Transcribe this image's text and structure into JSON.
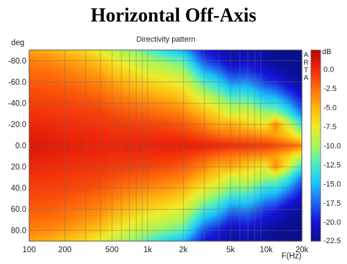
{
  "chart_data": {
    "type": "heatmap",
    "title": "Horizontal Off-Axis",
    "subtitle": "Directivity pattern",
    "xlabel": "F(Hz)",
    "ylabel": "deg",
    "x_scale": "log",
    "xlim": [
      100,
      20000
    ],
    "ylim": [
      -90,
      90
    ],
    "x_ticks": [
      100,
      200,
      500,
      1000,
      2000,
      5000,
      10000,
      20000
    ],
    "x_tick_labels": [
      "100",
      "200",
      "500",
      "1k",
      "2k",
      "5k",
      "10k",
      "20k"
    ],
    "y_ticks": [
      -80,
      -60,
      -40,
      -20,
      0,
      20,
      40,
      60,
      80
    ],
    "y_tick_labels": [
      "-80.0",
      "-60.0",
      "-40.0",
      "-20.0",
      "0.0",
      "20.0",
      "40.0",
      "60.0",
      "80.0"
    ],
    "watermark": "ARTA",
    "colorbar": {
      "unit": "dB",
      "range": [
        -22.5,
        2.5
      ],
      "ticks": [
        0,
        -2.5,
        -5,
        -7.5,
        -10,
        -12.5,
        -15,
        -17.5,
        -20,
        -22.5
      ],
      "tick_labels": [
        "0.0",
        "-2.5",
        "-5.0",
        "-7.5",
        "-10.0",
        "-12.5",
        "-15.0",
        "-17.5",
        "-20.0",
        "-22.5"
      ],
      "colors": [
        "#0a0f8c",
        "#1414d7",
        "#1e64f0",
        "#19c3fa",
        "#4bebc8",
        "#aaf55a",
        "#f0eb28",
        "#ffb40f",
        "#ff6e0a",
        "#f0280a",
        "#b40505"
      ]
    },
    "frequencies_hz": [
      100,
      150,
      200,
      300,
      400,
      500,
      700,
      1000,
      1500,
      2000,
      3000,
      4000,
      5000,
      7000,
      10000,
      12000,
      15000,
      20000
    ],
    "angles_deg": [
      -90,
      -80,
      -70,
      -60,
      -50,
      -40,
      -30,
      -20,
      -10,
      0,
      10,
      20,
      30,
      40,
      50,
      60,
      70,
      80,
      90
    ],
    "values_db": [
      [
        -4.4,
        -5.0,
        -5.6,
        -6.8,
        -8.0,
        -9.2,
        -10.4,
        -12.1,
        -14.4,
        -15.5,
        -20.0,
        -21.0,
        -22.0,
        -21.5,
        -22.0,
        -22.5,
        -22.5,
        -22.5
      ],
      [
        -3.2,
        -3.6,
        -4.1,
        -5.0,
        -5.9,
        -7.2,
        -8.5,
        -9.9,
        -11.1,
        -12.2,
        -18.3,
        -19.8,
        -21.0,
        -20.5,
        -21.7,
        -22.3,
        -22.5,
        -22.5
      ],
      [
        -2.4,
        -2.6,
        -3.0,
        -3.8,
        -4.5,
        -5.7,
        -6.9,
        -8.2,
        -9.1,
        -10.0,
        -15.4,
        -17.1,
        -19.2,
        -18.9,
        -20.4,
        -21.1,
        -22.0,
        -22.5
      ],
      [
        -1.8,
        -2.0,
        -2.3,
        -2.9,
        -3.4,
        -4.3,
        -5.4,
        -6.4,
        -7.3,
        -8.2,
        -12.5,
        -14.2,
        -16.6,
        -16.4,
        -18.8,
        -19.4,
        -21.0,
        -22.1
      ],
      [
        -1.2,
        -1.4,
        -1.6,
        -2.1,
        -2.5,
        -3.2,
        -4.1,
        -4.8,
        -5.6,
        -6.5,
        -9.9,
        -11.7,
        -13.7,
        -13.7,
        -16.0,
        -16.6,
        -18.6,
        -20.9
      ],
      [
        -0.8,
        -0.9,
        -1.0,
        -1.3,
        -1.6,
        -2.2,
        -2.8,
        -3.4,
        -4.0,
        -4.8,
        -7.5,
        -9.0,
        -10.8,
        -11.0,
        -13.5,
        -13.6,
        -15.7,
        -19.2
      ],
      [
        -0.4,
        -0.5,
        -0.6,
        -0.8,
        -0.9,
        -1.3,
        -1.7,
        -2.1,
        -2.6,
        -3.2,
        -5.2,
        -6.8,
        -8.5,
        -8.3,
        -10.1,
        -10.3,
        -12.5,
        -16.8
      ],
      [
        0.2,
        0.0,
        -0.2,
        -0.3,
        -0.4,
        -0.6,
        -0.8,
        -1.0,
        -1.3,
        -1.8,
        -3.3,
        -4.9,
        -4.5,
        -6.3,
        -7.5,
        -3.3,
        -8.0,
        -13.3
      ],
      [
        0.6,
        0.4,
        0.2,
        0.1,
        0.0,
        -0.2,
        -0.2,
        -0.3,
        -0.4,
        -0.6,
        -1.5,
        -2.5,
        -2.9,
        -3.3,
        -3.9,
        -4.4,
        -6.0,
        -9.2
      ],
      [
        1.0,
        0.8,
        0.6,
        0.4,
        0.3,
        0.2,
        0.3,
        0.4,
        0.5,
        0.6,
        0.4,
        0.2,
        0.0,
        -0.3,
        -0.6,
        -1.0,
        -1.7,
        -2.9
      ],
      [
        0.6,
        0.4,
        0.2,
        0.1,
        0.0,
        -0.2,
        -0.2,
        -0.3,
        -0.4,
        -0.6,
        -1.5,
        -2.5,
        -2.9,
        -3.3,
        -3.9,
        -4.4,
        -6.0,
        -9.2
      ],
      [
        0.2,
        0.0,
        -0.2,
        -0.3,
        -0.4,
        -0.6,
        -0.8,
        -1.0,
        -1.3,
        -1.8,
        -3.3,
        -4.9,
        -4.5,
        -6.3,
        -7.5,
        -3.3,
        -8.0,
        -13.3
      ],
      [
        -0.4,
        -0.5,
        -0.6,
        -0.8,
        -0.9,
        -1.3,
        -1.7,
        -2.1,
        -2.6,
        -3.2,
        -5.2,
        -6.8,
        -8.5,
        -8.3,
        -10.1,
        -10.3,
        -12.5,
        -16.8
      ],
      [
        -0.8,
        -0.9,
        -1.0,
        -1.3,
        -1.6,
        -2.2,
        -2.8,
        -3.4,
        -4.0,
        -4.8,
        -7.5,
        -9.0,
        -10.8,
        -11.0,
        -13.5,
        -13.6,
        -15.7,
        -19.2
      ],
      [
        -1.2,
        -1.4,
        -1.6,
        -2.1,
        -2.5,
        -3.2,
        -4.1,
        -4.8,
        -5.6,
        -6.5,
        -9.9,
        -11.7,
        -13.7,
        -13.7,
        -16.0,
        -16.6,
        -18.6,
        -20.9
      ],
      [
        -1.8,
        -2.0,
        -2.3,
        -2.9,
        -3.4,
        -4.3,
        -5.4,
        -6.4,
        -7.3,
        -8.2,
        -12.5,
        -14.2,
        -16.6,
        -16.4,
        -18.8,
        -19.4,
        -21.0,
        -22.1
      ],
      [
        -2.4,
        -2.6,
        -3.0,
        -3.8,
        -4.5,
        -5.7,
        -6.9,
        -8.2,
        -9.1,
        -10.0,
        -15.4,
        -17.1,
        -19.2,
        -18.9,
        -20.4,
        -21.1,
        -22.0,
        -22.5
      ],
      [
        -3.2,
        -3.6,
        -4.1,
        -5.0,
        -5.9,
        -7.2,
        -8.5,
        -9.9,
        -11.1,
        -12.2,
        -18.3,
        -19.8,
        -21.0,
        -20.5,
        -21.7,
        -22.3,
        -22.5,
        -22.5
      ],
      [
        -4.4,
        -5.0,
        -5.6,
        -6.8,
        -8.0,
        -9.2,
        -10.4,
        -12.1,
        -14.4,
        -15.5,
        -20.0,
        -21.0,
        -22.0,
        -21.5,
        -22.0,
        -22.5,
        -22.5,
        -22.5
      ]
    ]
  }
}
